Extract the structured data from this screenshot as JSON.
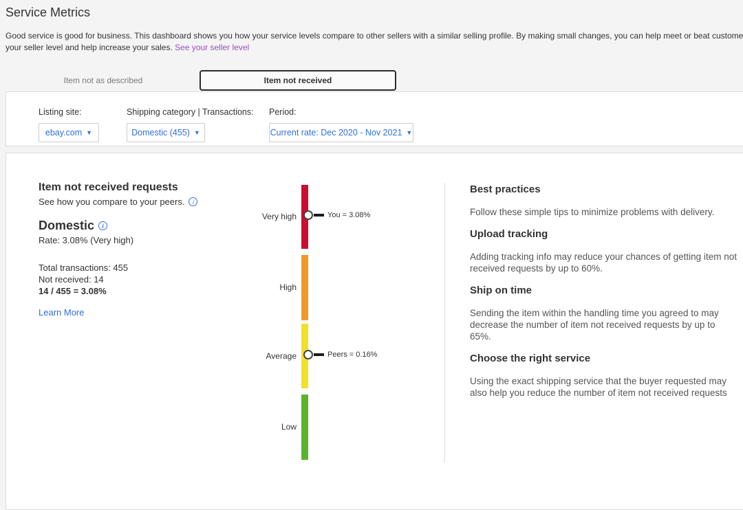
{
  "page": {
    "title": "Service Metrics",
    "intro_line1": "Good service is good for business. This dashboard shows you how your service levels compare to other sellers with a similar selling profile. By making small changes, you can help meet or beat customer expectations. W",
    "intro_line2": "your seller level and help increase your sales.",
    "seller_level_link": "See your seller level"
  },
  "tabs": {
    "not_as_described": "Item not as described",
    "not_received": "Item not received"
  },
  "filters": {
    "listing_site": {
      "label": "Listing site:",
      "value": "ebay.com"
    },
    "shipping_category": {
      "label": "Shipping category | Transactions:",
      "value": "Domestic (455)"
    },
    "period": {
      "label": "Period:",
      "value": "Current rate: Dec 2020 - Nov 2021"
    }
  },
  "metrics": {
    "heading": "Item not received requests",
    "subheading": "See how you compare to your peers.",
    "category": "Domestic",
    "rate_line": "Rate: 3.08% (Very high)",
    "total_transactions": "Total transactions: 455",
    "not_received": "Not received: 14",
    "calculation": "14 / 455 = 3.08%",
    "learn_more": "Learn More"
  },
  "gauge": {
    "type": "vertical-rating-gauge",
    "segments": [
      {
        "label": "Very high",
        "color": "#cb0c31"
      },
      {
        "label": "High",
        "color": "#f09b28"
      },
      {
        "label": "Average",
        "color": "#f3e02a"
      },
      {
        "label": "Low",
        "color": "#5db32a"
      }
    ],
    "markers": [
      {
        "label": "You = 3.08%",
        "value": "3.08%",
        "segment": "Very high"
      },
      {
        "label": "Peers = 0.16%",
        "value": "0.16%",
        "segment": "Average"
      }
    ]
  },
  "best_practices": {
    "heading": "Best practices",
    "intro": "Follow these simple tips to minimize problems with delivery.",
    "tips": [
      {
        "title": "Upload tracking",
        "body": "Adding tracking info may reduce your chances of getting item not received requests by up to 60%."
      },
      {
        "title": "Ship on time",
        "body": "Sending the item within the handling time you agreed to may decrease the number of item not received requests by up to 65%."
      },
      {
        "title": "Choose the right service",
        "body": "Using the exact shipping service that the buyer requested may also help you reduce the number of item not received requests"
      }
    ]
  },
  "colors": {
    "accent_blue": "#2f6fde",
    "visited_purple": "#9a4ec2",
    "page_bg": "#f4f4f4",
    "panel_border": "#dddddd",
    "tab_border": "#2b2b2b"
  }
}
